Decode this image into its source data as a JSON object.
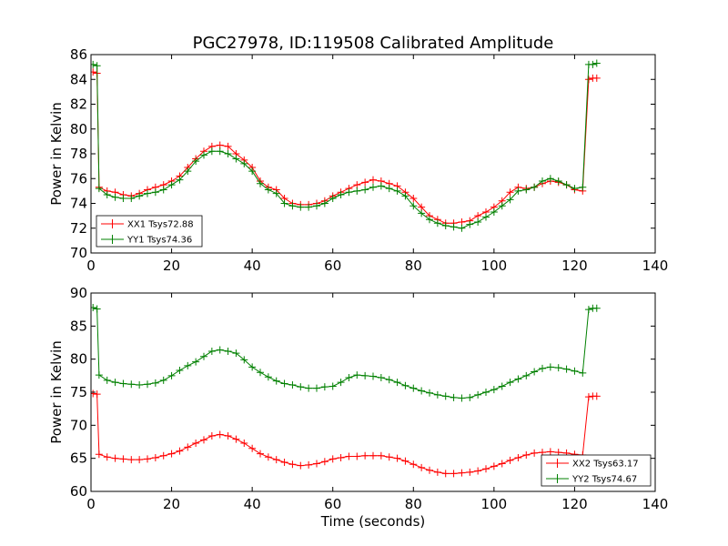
{
  "chart_data": [
    {
      "type": "line",
      "title": "PGC27978, ID:119508 Calibrated Amplitude",
      "xlabel": "",
      "ylabel": "Power in Kelvin",
      "xlim": [
        0,
        140
      ],
      "ylim": [
        70,
        86
      ],
      "xticks": [
        "0",
        "20",
        "40",
        "60",
        "80",
        "100",
        "120",
        "140"
      ],
      "yticks": [
        "70",
        "72",
        "74",
        "76",
        "78",
        "80",
        "82",
        "84",
        "86"
      ],
      "legend_position": "lower-left",
      "series": [
        {
          "name": "XX1 Tsys72.88",
          "color": "#ff0000",
          "x": [
            0.5,
            1.5,
            2,
            4,
            6,
            8,
            10,
            12,
            14,
            16,
            18,
            20,
            22,
            24,
            26,
            28,
            30,
            32,
            34,
            36,
            38,
            40,
            42,
            44,
            46,
            48,
            50,
            52,
            54,
            56,
            58,
            60,
            62,
            64,
            66,
            68,
            70,
            72,
            74,
            76,
            78,
            80,
            82,
            84,
            86,
            88,
            90,
            92,
            94,
            96,
            98,
            100,
            102,
            104,
            106,
            108,
            110,
            112,
            114,
            116,
            118,
            120,
            122,
            123.5,
            124.5,
            125.5
          ],
          "y": [
            84.6,
            84.5,
            75.3,
            75.0,
            74.9,
            74.7,
            74.6,
            74.8,
            75.1,
            75.3,
            75.5,
            75.8,
            76.2,
            76.9,
            77.6,
            78.2,
            78.6,
            78.7,
            78.6,
            78.0,
            77.5,
            76.9,
            75.8,
            75.3,
            75.1,
            74.4,
            74.0,
            73.9,
            73.9,
            74.0,
            74.2,
            74.6,
            74.9,
            75.2,
            75.5,
            75.7,
            75.9,
            75.8,
            75.6,
            75.4,
            74.9,
            74.4,
            73.7,
            73.0,
            72.7,
            72.4,
            72.4,
            72.5,
            72.6,
            73.0,
            73.3,
            73.7,
            74.2,
            74.9,
            75.3,
            75.2,
            75.3,
            75.6,
            75.8,
            75.7,
            75.5,
            75.1,
            75.0,
            84.0,
            84.1,
            84.1
          ]
        },
        {
          "name": "YY1 Tsys74.36",
          "color": "#008000",
          "x": [
            0.5,
            1.5,
            2,
            4,
            6,
            8,
            10,
            12,
            14,
            16,
            18,
            20,
            22,
            24,
            26,
            28,
            30,
            32,
            34,
            36,
            38,
            40,
            42,
            44,
            46,
            48,
            50,
            52,
            54,
            56,
            58,
            60,
            62,
            64,
            66,
            68,
            70,
            72,
            74,
            76,
            78,
            80,
            82,
            84,
            86,
            88,
            90,
            92,
            94,
            96,
            98,
            100,
            102,
            104,
            106,
            108,
            110,
            112,
            114,
            116,
            118,
            120,
            122,
            123.5,
            124.5,
            125.5
          ],
          "y": [
            85.2,
            85.1,
            75.2,
            74.7,
            74.5,
            74.4,
            74.4,
            74.6,
            74.8,
            74.9,
            75.1,
            75.5,
            75.9,
            76.6,
            77.4,
            77.9,
            78.2,
            78.2,
            78.0,
            77.6,
            77.2,
            76.6,
            75.6,
            75.1,
            74.8,
            74.0,
            73.8,
            73.7,
            73.7,
            73.8,
            74.0,
            74.4,
            74.7,
            74.9,
            75.0,
            75.1,
            75.3,
            75.4,
            75.2,
            75.0,
            74.6,
            73.8,
            73.2,
            72.7,
            72.4,
            72.2,
            72.1,
            72.0,
            72.3,
            72.5,
            72.9,
            73.3,
            73.8,
            74.3,
            75.0,
            75.1,
            75.3,
            75.8,
            76.0,
            75.8,
            75.5,
            75.2,
            75.3,
            85.2,
            85.2,
            85.3
          ]
        }
      ]
    },
    {
      "type": "line",
      "title": "",
      "xlabel": "Time (seconds)",
      "ylabel": "Power in Kelvin",
      "xlim": [
        0,
        140
      ],
      "ylim": [
        60,
        90
      ],
      "xticks": [
        "0",
        "20",
        "40",
        "60",
        "80",
        "100",
        "120",
        "140"
      ],
      "yticks": [
        "60",
        "65",
        "70",
        "75",
        "80",
        "85",
        "90"
      ],
      "legend_position": "lower-right",
      "series": [
        {
          "name": "XX2 Tsys63.17",
          "color": "#ff0000",
          "x": [
            0.5,
            1.5,
            2,
            4,
            6,
            8,
            10,
            12,
            14,
            16,
            18,
            20,
            22,
            24,
            26,
            28,
            30,
            32,
            34,
            36,
            38,
            40,
            42,
            44,
            46,
            48,
            50,
            52,
            54,
            56,
            58,
            60,
            62,
            64,
            66,
            68,
            70,
            72,
            74,
            76,
            78,
            80,
            82,
            84,
            86,
            88,
            90,
            92,
            94,
            96,
            98,
            100,
            102,
            104,
            106,
            108,
            110,
            112,
            114,
            116,
            118,
            120,
            122,
            123.5,
            124.5,
            125.5
          ],
          "y": [
            74.8,
            74.7,
            65.6,
            65.2,
            65.0,
            64.9,
            64.8,
            64.8,
            64.9,
            65.1,
            65.4,
            65.7,
            66.1,
            66.7,
            67.3,
            67.8,
            68.4,
            68.6,
            68.4,
            67.9,
            67.3,
            66.5,
            65.7,
            65.2,
            64.8,
            64.4,
            64.1,
            63.9,
            64.0,
            64.2,
            64.5,
            64.9,
            65.1,
            65.3,
            65.3,
            65.4,
            65.4,
            65.4,
            65.2,
            65.0,
            64.6,
            64.1,
            63.6,
            63.2,
            62.9,
            62.7,
            62.7,
            62.8,
            62.9,
            63.1,
            63.4,
            63.8,
            64.2,
            64.7,
            65.1,
            65.5,
            65.8,
            65.9,
            66.0,
            65.9,
            65.8,
            65.6,
            65.5,
            74.3,
            74.4,
            74.4
          ]
        },
        {
          "name": "YY2 Tsys74.67",
          "color": "#008000",
          "x": [
            0.5,
            1.5,
            2,
            4,
            6,
            8,
            10,
            12,
            14,
            16,
            18,
            20,
            22,
            24,
            26,
            28,
            30,
            32,
            34,
            36,
            38,
            40,
            42,
            44,
            46,
            48,
            50,
            52,
            54,
            56,
            58,
            60,
            62,
            64,
            66,
            68,
            70,
            72,
            74,
            76,
            78,
            80,
            82,
            84,
            86,
            88,
            90,
            92,
            94,
            96,
            98,
            100,
            102,
            104,
            106,
            108,
            110,
            112,
            114,
            116,
            118,
            120,
            122,
            123.5,
            124.5,
            125.5
          ],
          "y": [
            87.8,
            87.6,
            77.6,
            76.8,
            76.5,
            76.3,
            76.2,
            76.1,
            76.2,
            76.4,
            76.8,
            77.5,
            78.3,
            79.0,
            79.6,
            80.4,
            81.2,
            81.4,
            81.2,
            80.9,
            79.9,
            78.8,
            78.0,
            77.3,
            76.7,
            76.3,
            76.1,
            75.8,
            75.6,
            75.6,
            75.8,
            75.9,
            76.5,
            77.2,
            77.6,
            77.5,
            77.4,
            77.2,
            76.9,
            76.5,
            76.0,
            75.6,
            75.2,
            74.9,
            74.6,
            74.4,
            74.2,
            74.1,
            74.2,
            74.6,
            75.0,
            75.4,
            75.9,
            76.5,
            77.0,
            77.5,
            78.1,
            78.6,
            78.8,
            78.7,
            78.5,
            78.2,
            77.9,
            87.5,
            87.7,
            87.7
          ]
        }
      ]
    }
  ]
}
